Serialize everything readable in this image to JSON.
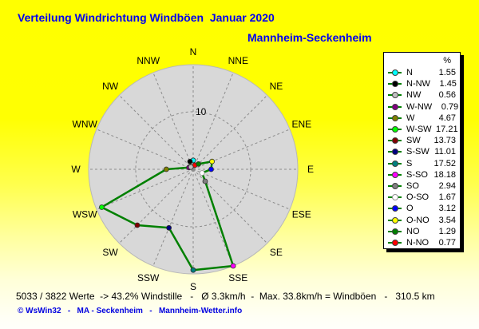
{
  "title": {
    "line1": "Verteilung Windrichtung Windböen  Januar 2020",
    "line2": "Mannheim-Seckenheim"
  },
  "legend": {
    "header": "%",
    "items": [
      {
        "label": "N",
        "value": "1.55",
        "color": "#00ffff"
      },
      {
        "label": "N-NW",
        "value": "1.45",
        "color": "#000000"
      },
      {
        "label": "NW",
        "value": "0.56",
        "color": "#c0c0c0"
      },
      {
        "label": "W-NW",
        "value": "0.79",
        "color": "#800080"
      },
      {
        "label": "W",
        "value": "4.67",
        "color": "#808000"
      },
      {
        "label": "W-SW",
        "value": "17.21",
        "color": "#00ff00"
      },
      {
        "label": "SW",
        "value": "13.73",
        "color": "#800000"
      },
      {
        "label": "S-SW",
        "value": "11.01",
        "color": "#000080"
      },
      {
        "label": "S",
        "value": "17.52",
        "color": "#008080"
      },
      {
        "label": "S-SO",
        "value": "18.18",
        "color": "#ff00ff"
      },
      {
        "label": "SO",
        "value": "2.94",
        "color": "#808080"
      },
      {
        "label": "O-SO",
        "value": "1.67",
        "color": "#ffffff"
      },
      {
        "label": "O",
        "value": "3.12",
        "color": "#0000ff"
      },
      {
        "label": "O-NO",
        "value": "3.54",
        "color": "#ffff00"
      },
      {
        "label": "NO",
        "value": "1.29",
        "color": "#008000"
      },
      {
        "label": "N-NO",
        "value": "0.77",
        "color": "#ff0000"
      }
    ]
  },
  "chart_data": {
    "type": "wind-rose-radar",
    "title": "Verteilung Windrichtung Windböen Januar 2020",
    "station": "Mannheim-Seckenheim",
    "unit": "%",
    "axis": {
      "max": 18.18,
      "ring_value": 10,
      "ring_label": "10",
      "compass_labels": [
        "N",
        "NNE",
        "NE",
        "ENE",
        "E",
        "ESE",
        "SE",
        "SSE",
        "S",
        "SSW",
        "SW",
        "WSW",
        "W",
        "WNW",
        "NW",
        "NNW"
      ]
    },
    "style": {
      "disc_fill": "#d8d8d8",
      "disc_edge": "#b8b8b8",
      "grid_color": "#8c8c8c",
      "line_color": "#008000",
      "label_color": "#000000"
    },
    "series": [
      {
        "direction": "N",
        "angle_deg": 0,
        "value": 1.55,
        "color": "#00ffff"
      },
      {
        "direction": "N-NO",
        "angle_deg": 22.5,
        "value": 0.77,
        "color": "#ff0000"
      },
      {
        "direction": "NO",
        "angle_deg": 45,
        "value": 1.29,
        "color": "#008000"
      },
      {
        "direction": "O-NO",
        "angle_deg": 67.5,
        "value": 3.54,
        "color": "#ffff00"
      },
      {
        "direction": "O",
        "angle_deg": 90,
        "value": 3.12,
        "color": "#0000ff"
      },
      {
        "direction": "O-SO",
        "angle_deg": 112.5,
        "value": 1.67,
        "color": "#ffffff"
      },
      {
        "direction": "SO",
        "angle_deg": 135,
        "value": 2.94,
        "color": "#808080"
      },
      {
        "direction": "S-SO",
        "angle_deg": 157.5,
        "value": 18.18,
        "color": "#ff00ff"
      },
      {
        "direction": "S",
        "angle_deg": 180,
        "value": 17.52,
        "color": "#008080"
      },
      {
        "direction": "S-SW",
        "angle_deg": 202.5,
        "value": 11.01,
        "color": "#000080"
      },
      {
        "direction": "SW",
        "angle_deg": 225,
        "value": 13.73,
        "color": "#800000"
      },
      {
        "direction": "W-SW",
        "angle_deg": 247.5,
        "value": 17.21,
        "color": "#00ff00"
      },
      {
        "direction": "W",
        "angle_deg": 270,
        "value": 4.67,
        "color": "#808000"
      },
      {
        "direction": "W-NW",
        "angle_deg": 292.5,
        "value": 0.79,
        "color": "#800080"
      },
      {
        "direction": "NW",
        "angle_deg": 315,
        "value": 0.56,
        "color": "#c0c0c0"
      },
      {
        "direction": "N-NW",
        "angle_deg": 337.5,
        "value": 1.45,
        "color": "#000000"
      }
    ]
  },
  "stats_line": "5033 / 3822 Werte  -> 43.2% Windstille   -   Ø 3.3km/h  -  Max. 33.8km/h = Windböen   -   310.5 km",
  "footer": "© WsWin32   -   MA - Seckenheim   -   Mannheim-Wetter.info"
}
